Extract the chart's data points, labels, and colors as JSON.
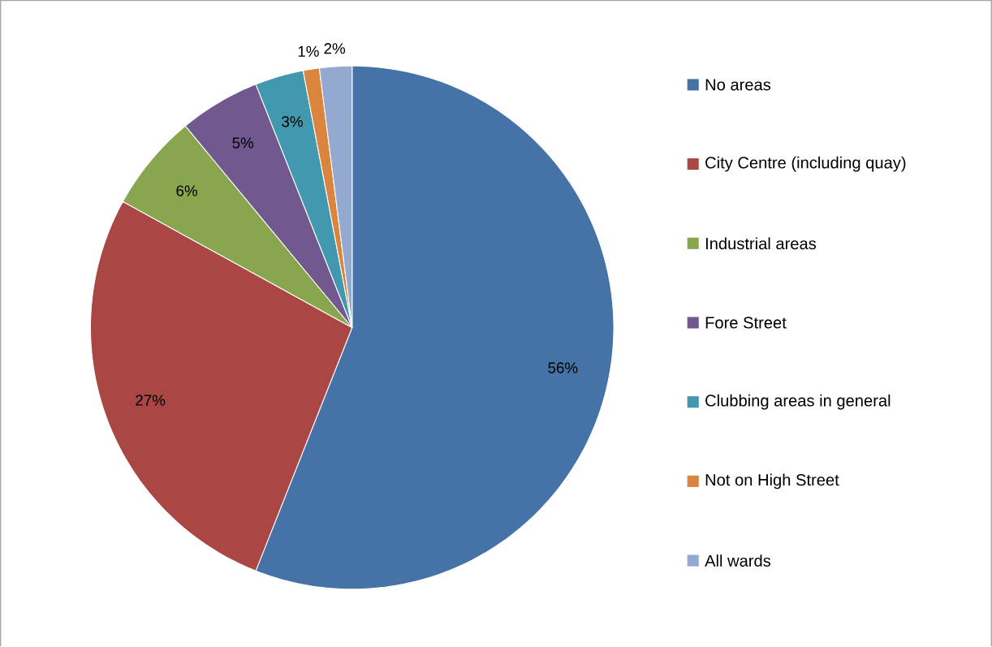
{
  "chart_data": {
    "type": "pie",
    "categories": [
      "No areas",
      "City Centre (including quay)",
      "Industrial areas",
      "Fore Street",
      "Clubbing areas in general",
      "Not on High Street",
      "All wards"
    ],
    "values": [
      56,
      27,
      6,
      5,
      3,
      1,
      2
    ],
    "colors": [
      "#4572a7",
      "#aa4643",
      "#89a54e",
      "#71588f",
      "#4198af",
      "#db843d",
      "#93a9cf"
    ],
    "value_labels": [
      "56%",
      "27%",
      "6%",
      "5%",
      "3%",
      "1%",
      "2%"
    ],
    "legend": "right"
  }
}
